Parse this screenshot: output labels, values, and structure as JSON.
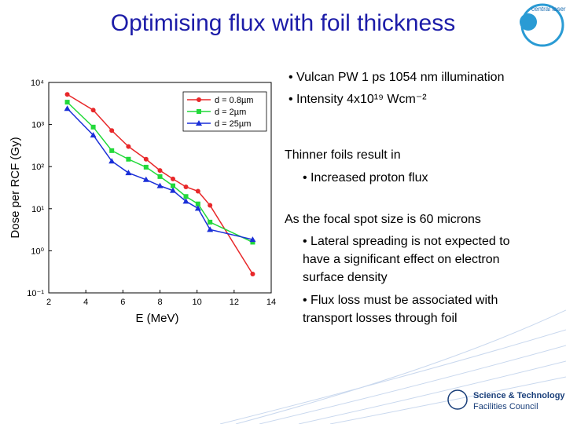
{
  "title": "Optimising flux with foil thickness",
  "logos": {
    "clf": "central laser facility",
    "stfc": [
      "Science & Technology",
      "Facilities Council"
    ]
  },
  "text_blocks": [
    {
      "lines": [
        "• Vulcan PW 1 ps 1054 nm illumination"
      ]
    },
    {
      "lines": [
        "• Intensity 4x10¹⁹ Wcm⁻²"
      ]
    },
    {
      "lines": [
        "Thinner foils result in"
      ]
    },
    {
      "lines": [
        "• Increased proton flux"
      ]
    },
    {
      "lines": [
        "As the focal spot size is 60 microns"
      ]
    },
    {
      "lines": [
        "• Lateral spreading is not expected to",
        "have a significant effect on electron",
        "surface density"
      ]
    },
    {
      "lines": [
        "• Flux loss must be associated with",
        "transport losses through foil"
      ]
    }
  ],
  "chart_data": {
    "type": "line",
    "x_label": "E (MeV)",
    "y_label": "Dose per RCF (Gy)",
    "x": [
      3.0,
      4.4,
      5.4,
      6.3,
      7.25,
      8.0,
      8.7,
      9.4,
      10.05,
      10.7,
      13.0
    ],
    "series": [
      {
        "name": "d = 0.8µm",
        "color": "#e8282a",
        "marker": "circle",
        "values": [
          5200,
          2200,
          720,
          300,
          150,
          81,
          51,
          33,
          26,
          12,
          0.28
        ]
      },
      {
        "name": "d = 2µm",
        "color": "#22d93a",
        "marker": "square",
        "values": [
          3400,
          870,
          240,
          150,
          97,
          58,
          35,
          19.5,
          13,
          4.8,
          1.6
        ]
      },
      {
        "name": "d = 25µm",
        "color": "#1a2fd8",
        "marker": "triangle",
        "values": [
          2400,
          560,
          135,
          71,
          49,
          35,
          27,
          15,
          10.2,
          3.2,
          1.85
        ]
      }
    ],
    "xlim": [
      2,
      14
    ],
    "xticks": [
      2,
      4,
      6,
      8,
      10,
      12,
      14
    ],
    "ylim": [
      0.1,
      10000
    ],
    "y_scale": "log",
    "yticks": [
      {
        "value": 0.1,
        "label": "10⁻¹"
      },
      {
        "value": 1,
        "label": "10⁰"
      },
      {
        "value": 10,
        "label": "10¹"
      },
      {
        "value": 100,
        "label": "10²"
      },
      {
        "value": 1000,
        "label": "10³"
      },
      {
        "value": 10000,
        "label": "10⁴"
      }
    ],
    "legend": "upper right"
  }
}
